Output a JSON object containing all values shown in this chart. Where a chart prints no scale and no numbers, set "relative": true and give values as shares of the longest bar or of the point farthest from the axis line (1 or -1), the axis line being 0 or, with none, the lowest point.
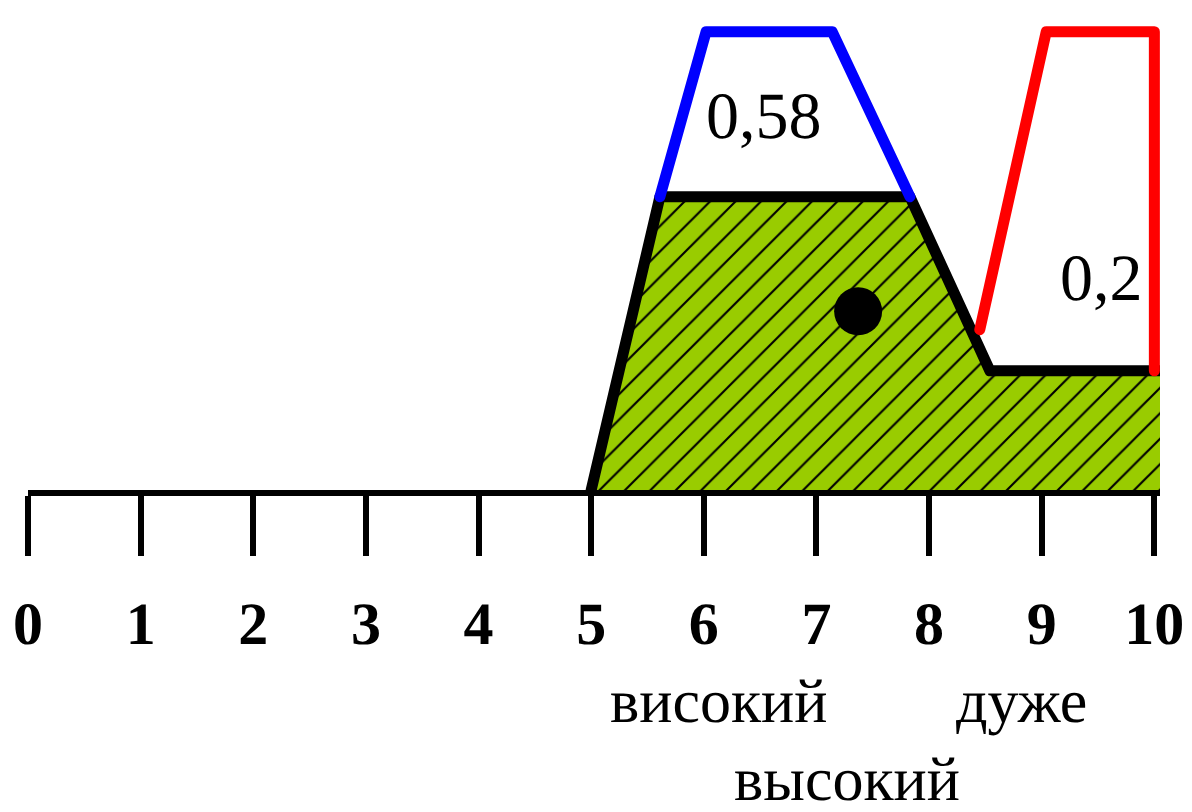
{
  "chart_data": {
    "type": "line",
    "relative": true,
    "xlim": [
      0,
      10.05
    ],
    "xticks": [
      0,
      1,
      2,
      3,
      4,
      5,
      6,
      7,
      8,
      9,
      10
    ],
    "series": [
      {
        "type": "area",
        "color": "#99cc00",
        "x": [
          5,
          5.61,
          7.83,
          8.54,
          10.05
        ],
        "values": [
          0,
          0.64,
          0.64,
          0.26,
          0.26
        ]
      },
      {
        "color": "#0000ff",
        "x": [
          5.61,
          6.02,
          7.14,
          7.83
        ],
        "values": [
          0.64,
          1,
          1,
          0.64
        ]
      },
      {
        "color": "#ff0000",
        "x": [
          8.45,
          9.04,
          10,
          10
        ],
        "values": [
          0.35,
          1,
          1,
          0.26
        ]
      },
      {
        "type": "scatter",
        "color": "#000000",
        "marker": "circle",
        "x": [
          7.37
        ],
        "values": [
          0.39
        ]
      }
    ],
    "annotations": [
      "0,58",
      "0,2",
      "високий",
      "дуже",
      "высокий"
    ]
  }
}
